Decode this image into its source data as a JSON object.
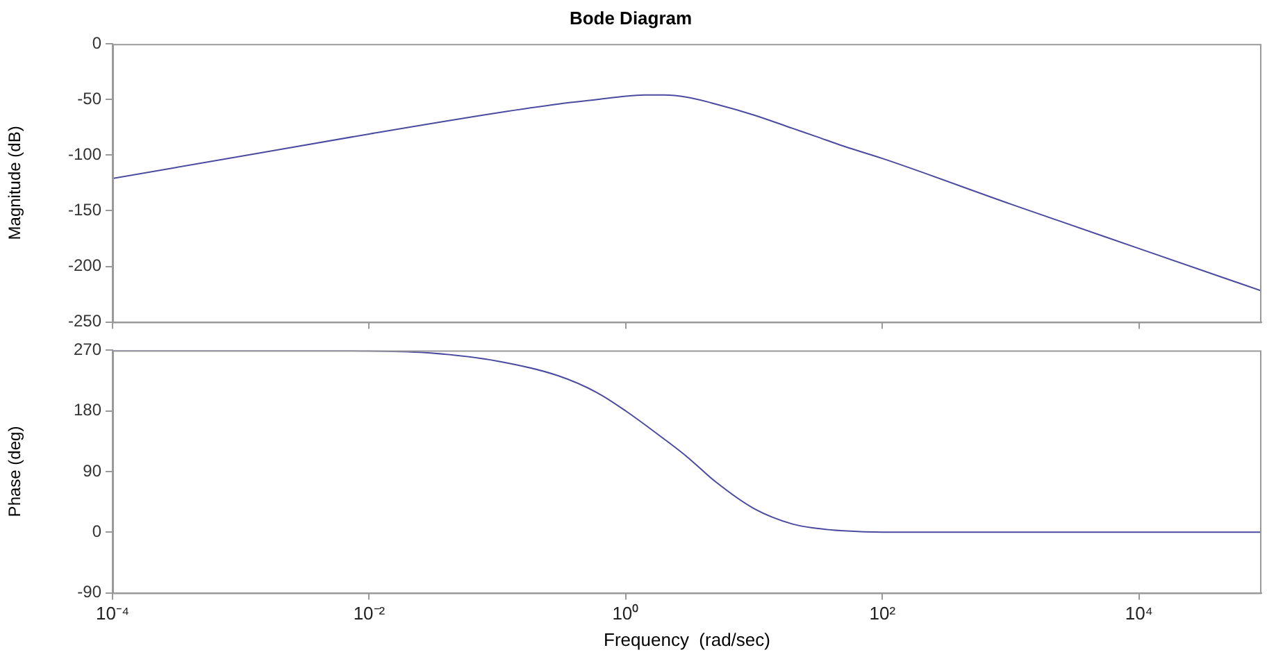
{
  "chart_data": [
    {
      "type": "line",
      "title": "Bode Diagram",
      "ylabel": "Magnitude (dB)",
      "log": "x",
      "grid": false,
      "legend": false,
      "marker": "none",
      "line_style": "solid",
      "tick_labels": "y",
      "x": [
        0.0001,
        0.001,
        0.01,
        0.1,
        0.3,
        0.6,
        1,
        1.4,
        2,
        3,
        5,
        10,
        20,
        30,
        50,
        100,
        1000,
        10000,
        90000
      ],
      "series": [
        {
          "color": "#4a4aa0",
          "values": [
            -121,
            -101,
            -81,
            -62,
            -54,
            -50,
            -47,
            -46,
            -46,
            -48,
            -54,
            -64,
            -76,
            -83,
            -92,
            -103,
            -144,
            -184,
            -222
          ]
        }
      ],
      "xlim": [
        0.0001,
        90000
      ],
      "xticks": [
        {
          "value": 0.0001,
          "label": null
        },
        {
          "value": 0.01,
          "label": null
        },
        {
          "value": 1,
          "label": null
        },
        {
          "value": 100,
          "label": null
        },
        {
          "value": 10000,
          "label": null
        }
      ],
      "ylim": [
        -250,
        0
      ],
      "yticks": [
        -250,
        -200,
        -150,
        -100,
        -50,
        0
      ]
    },
    {
      "type": "line",
      "xlabel": "Frequency  (rad/sec)",
      "ylabel": "Phase (deg)",
      "log": "x",
      "grid": false,
      "legend": false,
      "marker": "none",
      "line_style": "solid",
      "x": [
        0.0001,
        0.001,
        0.01,
        0.03,
        0.1,
        0.3,
        0.6,
        1,
        2,
        3,
        5,
        10,
        20,
        30,
        50,
        100,
        1000,
        10000,
        90000
      ],
      "series": [
        {
          "color": "#4a4aa0",
          "values": [
            270,
            270,
            269,
            266,
            254,
            232,
            207,
            180,
            138,
            112,
            75,
            35,
            12,
            6,
            2,
            0,
            0,
            0,
            0
          ]
        }
      ],
      "xlim": [
        0.0001,
        90000
      ],
      "xticks": [
        {
          "value": 0.0001,
          "label": "10⁻⁴"
        },
        {
          "value": 0.01,
          "label": "10⁻²"
        },
        {
          "value": 1,
          "label": "10⁰"
        },
        {
          "value": 100,
          "label": "10²"
        },
        {
          "value": 10000,
          "label": "10⁴"
        }
      ],
      "ylim": [
        -90,
        270
      ],
      "yticks": [
        -90,
        0,
        90,
        180,
        270
      ]
    }
  ]
}
